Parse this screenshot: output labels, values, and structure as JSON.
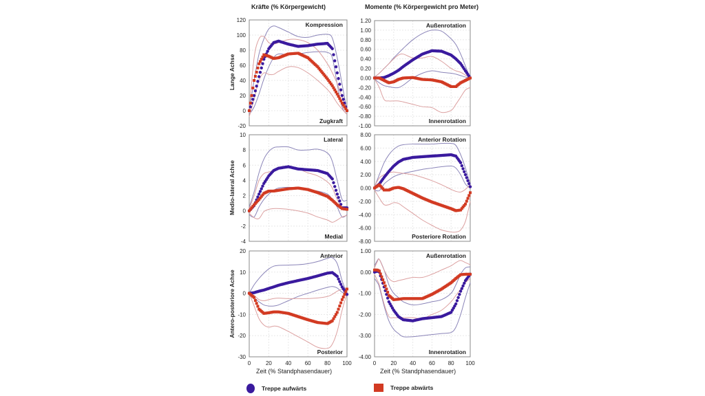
{
  "figure": {
    "column_titles": [
      "Kräfte (% Körpergewicht)",
      "Momente (% Körpergewicht pro Meter)"
    ],
    "row_labels": [
      "Lange Achse",
      "Medio-lateral Achse",
      "Antero-posteriore Achse"
    ],
    "xlabel": "Zeit (% Standphasendauer)",
    "legend": [
      {
        "label": "Treppe aufwärts",
        "color": "#3a1a9e",
        "marker": "circle"
      },
      {
        "label": "Treppe abwärts",
        "color": "#d23a22",
        "marker": "square"
      }
    ]
  },
  "chart_data": [
    {
      "type": "line",
      "id": "forces-long",
      "title": "",
      "xlabel": "",
      "ylabel": "Lange Achse",
      "top_annotation": "Kompression",
      "bottom_annotation": "Zugkraft",
      "xlim": [
        0,
        100
      ],
      "ylim": [
        -20,
        120
      ],
      "yticks": [
        "120",
        "100",
        "80",
        "60",
        "40",
        "20",
        "0",
        "-20"
      ],
      "ytick_values": [
        120,
        100,
        80,
        60,
        40,
        20,
        0,
        -20
      ],
      "xticks": [],
      "x": [
        0,
        5,
        10,
        15,
        20,
        25,
        30,
        40,
        50,
        60,
        70,
        80,
        85,
        90,
        95,
        100
      ],
      "series": [
        {
          "name": "Treppe aufwärts",
          "values": [
            0,
            20,
            45,
            68,
            82,
            90,
            92,
            88,
            85,
            86,
            88,
            89,
            82,
            50,
            20,
            0
          ],
          "upper": [
            0,
            40,
            75,
            95,
            108,
            112,
            110,
            104,
            98,
            97,
            100,
            101,
            96,
            70,
            35,
            0
          ],
          "lower": [
            -5,
            5,
            22,
            42,
            58,
            70,
            75,
            74,
            75,
            77,
            78,
            77,
            70,
            35,
            5,
            -5
          ]
        },
        {
          "name": "Treppe abwärts",
          "values": [
            0,
            40,
            62,
            74,
            72,
            69,
            70,
            75,
            76,
            70,
            58,
            42,
            33,
            22,
            10,
            0
          ],
          "upper": [
            0,
            70,
            95,
            98,
            90,
            88,
            90,
            94,
            94,
            90,
            80,
            62,
            50,
            36,
            18,
            0
          ],
          "lower": [
            -8,
            15,
            40,
            50,
            48,
            48,
            52,
            58,
            57,
            50,
            40,
            28,
            20,
            10,
            2,
            -5
          ]
        }
      ]
    },
    {
      "type": "line",
      "id": "moments-long",
      "ylabel": "",
      "top_annotation": "Außenrotation",
      "bottom_annotation": "Innenrotation",
      "xlim": [
        0,
        100
      ],
      "ylim": [
        -1.0,
        1.2
      ],
      "yticks": [
        "1.20",
        "1.00",
        "0.80",
        "0.60",
        "0.40",
        "0.20",
        "0.00",
        "-0.20",
        "-0.40",
        "-0.60",
        "-0.80",
        "-1.00"
      ],
      "ytick_values": [
        1.2,
        1.0,
        0.8,
        0.6,
        0.4,
        0.2,
        0.0,
        -0.2,
        -0.4,
        -0.6,
        -0.8,
        -1.0
      ],
      "xticks": [],
      "x": [
        0,
        5,
        10,
        15,
        20,
        25,
        30,
        40,
        50,
        60,
        70,
        80,
        85,
        90,
        95,
        100
      ],
      "series": [
        {
          "name": "Treppe aufwärts",
          "values": [
            0,
            0,
            0.01,
            0.05,
            0.1,
            0.16,
            0.24,
            0.38,
            0.5,
            0.57,
            0.56,
            0.48,
            0.4,
            0.3,
            0.15,
            0
          ],
          "upper": [
            0.02,
            0.1,
            0.2,
            0.3,
            0.42,
            0.52,
            0.62,
            0.8,
            0.93,
            1.0,
            0.98,
            0.82,
            0.7,
            0.5,
            0.25,
            0
          ],
          "lower": [
            -0.02,
            -0.1,
            -0.16,
            -0.18,
            -0.2,
            -0.2,
            -0.15,
            0.0,
            0.1,
            0.15,
            0.12,
            0.1,
            0.08,
            0.05,
            0.02,
            0
          ]
        },
        {
          "name": "Treppe abwärts",
          "values": [
            0,
            0,
            -0.05,
            -0.1,
            -0.08,
            -0.03,
            0.0,
            0.01,
            -0.03,
            -0.04,
            -0.08,
            -0.18,
            -0.18,
            -0.1,
            -0.05,
            0
          ],
          "upper": [
            0.02,
            0.1,
            0.2,
            0.3,
            0.4,
            0.48,
            0.5,
            0.42,
            0.42,
            0.45,
            0.35,
            0.2,
            0.15,
            0.12,
            0.06,
            0
          ],
          "lower": [
            -0.02,
            -0.2,
            -0.45,
            -0.48,
            -0.48,
            -0.48,
            -0.5,
            -0.55,
            -0.6,
            -0.62,
            -0.72,
            -0.68,
            -0.55,
            -0.4,
            -0.25,
            -0.2
          ]
        }
      ]
    },
    {
      "type": "line",
      "id": "forces-ml",
      "ylabel": "Medio-lateral Achse",
      "top_annotation": "Lateral",
      "bottom_annotation": "Medial",
      "xlim": [
        0,
        100
      ],
      "ylim": [
        -4,
        10
      ],
      "yticks": [
        "10",
        "8",
        "6",
        "4",
        "2",
        "0",
        "-2",
        "-4"
      ],
      "ytick_values": [
        10,
        8,
        6,
        4,
        2,
        0,
        -2,
        -4
      ],
      "xticks": [],
      "x": [
        0,
        5,
        10,
        15,
        20,
        25,
        30,
        40,
        50,
        60,
        70,
        80,
        85,
        90,
        95,
        100
      ],
      "series": [
        {
          "name": "Treppe aufwärts",
          "values": [
            0,
            0.7,
            2.2,
            3.6,
            4.6,
            5.3,
            5.6,
            5.8,
            5.5,
            5.4,
            5.3,
            4.9,
            4.2,
            2.2,
            0.4,
            0.4
          ],
          "upper": [
            0.5,
            2.5,
            5.0,
            6.8,
            7.8,
            8.3,
            8.4,
            8.4,
            8.0,
            8.0,
            8.1,
            7.6,
            6.5,
            4.0,
            1.5,
            1.4
          ],
          "lower": [
            -0.5,
            -0.8,
            0.5,
            1.5,
            2.2,
            2.7,
            3.0,
            3.1,
            3.0,
            2.8,
            2.6,
            2.2,
            1.5,
            0.5,
            -0.8,
            -0.5
          ]
        },
        {
          "name": "Treppe abwärts",
          "values": [
            0,
            0.8,
            1.5,
            2.3,
            2.6,
            2.6,
            2.7,
            2.9,
            3.0,
            2.8,
            2.4,
            1.9,
            1.4,
            0.8,
            0.3,
            0.2
          ],
          "upper": [
            0.3,
            2.0,
            4.0,
            4.9,
            5.1,
            5.3,
            5.5,
            5.7,
            5.5,
            5.0,
            4.6,
            3.8,
            3.0,
            1.5,
            0.5,
            0.4
          ],
          "lower": [
            -0.3,
            -0.9,
            -1.0,
            -0.1,
            0.2,
            0.3,
            0.3,
            0.2,
            0.0,
            -0.3,
            -0.8,
            -1.2,
            -1.5,
            -1.2,
            -0.8,
            -0.6
          ]
        }
      ]
    },
    {
      "type": "line",
      "id": "moments-ml",
      "ylabel": "",
      "top_annotation": "Anterior Rotation",
      "bottom_annotation": "Posteriore Rotation",
      "xlim": [
        0,
        100
      ],
      "ylim": [
        -8,
        8
      ],
      "yticks": [
        "8.00",
        "6.00",
        "4.00",
        "2.00",
        "0.00",
        "-2.00",
        "-4.00",
        "-6.00",
        "-8.00"
      ],
      "ytick_values": [
        8,
        6,
        4,
        2,
        0,
        -2,
        -4,
        -6,
        -8
      ],
      "xticks": [],
      "x": [
        0,
        5,
        10,
        15,
        20,
        25,
        30,
        40,
        50,
        60,
        70,
        80,
        85,
        90,
        95,
        100
      ],
      "series": [
        {
          "name": "Treppe aufwärts",
          "values": [
            0,
            0.6,
            1.6,
            2.5,
            3.3,
            3.9,
            4.3,
            4.6,
            4.7,
            4.8,
            4.9,
            5.0,
            4.8,
            3.8,
            2.0,
            0.2
          ],
          "upper": [
            0.2,
            2.0,
            3.8,
            5.0,
            5.8,
            6.3,
            6.5,
            6.6,
            6.6,
            6.6,
            6.7,
            6.7,
            6.4,
            5.0,
            3.0,
            0.5
          ],
          "lower": [
            -0.3,
            -0.4,
            0.6,
            1.2,
            1.7,
            2.0,
            2.2,
            2.5,
            2.8,
            3.0,
            3.2,
            3.3,
            3.0,
            2.0,
            0.6,
            0
          ]
        },
        {
          "name": "Treppe abwärts",
          "values": [
            0,
            0.5,
            -0.3,
            -0.3,
            0.0,
            0.1,
            -0.1,
            -0.8,
            -1.5,
            -2.1,
            -2.6,
            -3.1,
            -3.4,
            -3.3,
            -2.4,
            -0.7
          ],
          "upper": [
            0.3,
            1.5,
            2.0,
            2.3,
            2.4,
            2.3,
            2.2,
            2.0,
            1.6,
            1.1,
            0.5,
            -0.2,
            -0.5,
            -0.6,
            -0.2,
            0.5
          ],
          "lower": [
            -0.3,
            -1.5,
            -2.5,
            -2.5,
            -2.2,
            -2.3,
            -2.8,
            -3.8,
            -4.8,
            -5.6,
            -6.3,
            -6.6,
            -6.6,
            -6.3,
            -5.0,
            -2.0
          ]
        }
      ]
    },
    {
      "type": "line",
      "id": "forces-ap",
      "ylabel": "Antero-posteriore Achse",
      "top_annotation": "Anterior",
      "bottom_annotation": "Posterior",
      "xlim": [
        0,
        100
      ],
      "ylim": [
        -30,
        20
      ],
      "yticks": [
        "20",
        "10",
        "0",
        "-10",
        "-20",
        "-30"
      ],
      "ytick_values": [
        20,
        10,
        0,
        -10,
        -20,
        -30
      ],
      "xticks": [
        "0",
        "20",
        "40",
        "60",
        "80",
        "100"
      ],
      "xtick_values": [
        0,
        20,
        40,
        60,
        80,
        100
      ],
      "x": [
        0,
        5,
        10,
        15,
        20,
        25,
        30,
        40,
        50,
        60,
        70,
        80,
        85,
        90,
        95,
        100
      ],
      "series": [
        {
          "name": "Treppe aufwärts",
          "values": [
            0,
            0.3,
            1.0,
            1.5,
            2.3,
            3.0,
            3.8,
            5.0,
            6.0,
            7.0,
            8.2,
            9.5,
            9.8,
            8.0,
            3.0,
            -0.5
          ],
          "upper": [
            0,
            4.0,
            7.0,
            9.5,
            11.5,
            12.8,
            13.2,
            13.3,
            13.5,
            14.0,
            15.0,
            16.5,
            16.8,
            14.0,
            6.0,
            0
          ],
          "lower": [
            0,
            -2.0,
            -4.0,
            -5.5,
            -6.0,
            -6.0,
            -5.5,
            -3.5,
            -1.5,
            0.0,
            1.5,
            2.8,
            3.2,
            2.5,
            0.5,
            0
          ]
        },
        {
          "name": "Treppe abwärts",
          "values": [
            0,
            -2.0,
            -7.5,
            -9.5,
            -9.2,
            -8.8,
            -8.8,
            -9.5,
            -11.0,
            -12.5,
            -13.8,
            -14.3,
            -13.0,
            -9.0,
            -3.0,
            2.0
          ],
          "upper": [
            0,
            -1.0,
            -3.0,
            -3.5,
            -3.0,
            -2.5,
            -2.3,
            -2.5,
            -2.5,
            -2.5,
            -2.2,
            -1.5,
            -0.5,
            1.0,
            2.0,
            2.5
          ],
          "lower": [
            0,
            -6.0,
            -12.0,
            -15.0,
            -16.0,
            -15.5,
            -15.8,
            -18.0,
            -20.5,
            -23.0,
            -25.5,
            -26.0,
            -24.0,
            -18.0,
            -8.0,
            0
          ]
        }
      ]
    },
    {
      "type": "line",
      "id": "moments-ap",
      "ylabel": "",
      "top_annotation": "Außenrotation",
      "bottom_annotation": "Innenrotation",
      "xlim": [
        0,
        100
      ],
      "ylim": [
        -4,
        1
      ],
      "yticks": [
        "1.00",
        "0.00",
        "-1.00",
        "-2.00",
        "-3.00",
        "-4.00"
      ],
      "ytick_values": [
        1,
        0,
        -1,
        -2,
        -3,
        -4
      ],
      "xticks": [
        "0",
        "20",
        "40",
        "60",
        "80",
        "100"
      ],
      "xtick_values": [
        0,
        20,
        40,
        60,
        80,
        100
      ],
      "x": [
        0,
        3,
        5,
        10,
        15,
        20,
        25,
        30,
        40,
        50,
        60,
        70,
        80,
        85,
        90,
        95,
        100
      ],
      "series": [
        {
          "name": "Treppe aufwärts",
          "values": [
            0,
            0.05,
            0,
            -0.7,
            -1.4,
            -1.8,
            -2.1,
            -2.25,
            -2.3,
            -2.2,
            -2.15,
            -2.1,
            -1.9,
            -1.5,
            -0.9,
            -0.4,
            -0.1
          ],
          "upper": [
            0.3,
            0.55,
            0.6,
            0.1,
            -0.6,
            -1.0,
            -1.2,
            -1.4,
            -1.55,
            -1.5,
            -1.4,
            -1.3,
            -1.0,
            -0.6,
            -0.1,
            0.2,
            0.25
          ],
          "lower": [
            -0.3,
            -0.5,
            -0.7,
            -1.6,
            -2.3,
            -2.7,
            -2.9,
            -3.05,
            -3.05,
            -3.0,
            -2.95,
            -2.9,
            -2.85,
            -2.6,
            -2.0,
            -1.2,
            -0.5
          ]
        },
        {
          "name": "Treppe abwärts",
          "values": [
            0.1,
            0.1,
            0.05,
            -0.5,
            -1.1,
            -1.3,
            -1.28,
            -1.25,
            -1.25,
            -1.25,
            -1.05,
            -0.8,
            -0.5,
            -0.3,
            -0.12,
            -0.1,
            -0.1
          ],
          "upper": [
            0.2,
            0.5,
            0.6,
            0.1,
            -0.3,
            -0.45,
            -0.4,
            -0.35,
            -0.25,
            -0.25,
            -0.1,
            0.1,
            0.3,
            0.45,
            0.55,
            0.45,
            0.35
          ],
          "lower": [
            -0.1,
            -0.4,
            -0.6,
            -1.5,
            -2.1,
            -2.15,
            -2.15,
            -2.15,
            -2.15,
            -2.2,
            -2.0,
            -1.8,
            -1.4,
            -1.1,
            -0.8,
            -0.5,
            -0.3
          ]
        }
      ]
    }
  ]
}
